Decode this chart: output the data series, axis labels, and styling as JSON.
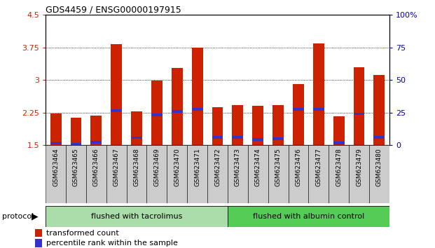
{
  "title": "GDS4459 / ENSG00000197915",
  "categories": [
    "GSM623464",
    "GSM623465",
    "GSM623466",
    "GSM623467",
    "GSM623468",
    "GSM623469",
    "GSM623470",
    "GSM623471",
    "GSM623472",
    "GSM623473",
    "GSM623474",
    "GSM623475",
    "GSM623476",
    "GSM623477",
    "GSM623478",
    "GSM623479",
    "GSM623480"
  ],
  "bar_values": [
    2.22,
    2.13,
    2.18,
    3.82,
    2.28,
    2.98,
    3.28,
    3.75,
    2.38,
    2.42,
    2.4,
    2.42,
    2.9,
    3.85,
    2.16,
    3.3,
    3.12
  ],
  "blue_values": [
    1.54,
    1.52,
    1.57,
    2.29,
    1.67,
    2.2,
    2.28,
    2.33,
    1.68,
    1.68,
    1.63,
    1.65,
    2.32,
    2.33,
    1.55,
    2.22,
    1.68
  ],
  "bar_color": "#cc2200",
  "blue_color": "#3333cc",
  "ymin": 1.5,
  "ymax": 4.5,
  "yticks": [
    1.5,
    2.25,
    3.0,
    3.75,
    4.5
  ],
  "ytick_labels": [
    "1.5",
    "2.25",
    "3",
    "3.75",
    "4.5"
  ],
  "right_yticks": [
    0,
    25,
    50,
    75,
    100
  ],
  "right_ytick_labels": [
    "0",
    "25",
    "50",
    "75",
    "100%"
  ],
  "grid_values": [
    2.25,
    3.0,
    3.75
  ],
  "protocol_groups": [
    {
      "label": "flushed with tacrolimus",
      "start": 0,
      "end": 9,
      "color": "#aaddaa"
    },
    {
      "label": "flushed with albumin control",
      "start": 9,
      "end": 17,
      "color": "#55cc55"
    }
  ],
  "protocol_label": "protocol",
  "legend_items": [
    {
      "color": "#cc2200",
      "label": "transformed count"
    },
    {
      "color": "#3333cc",
      "label": "percentile rank within the sample"
    }
  ],
  "bar_width": 0.55,
  "col_bg": "#cccccc",
  "plot_bg": "#ffffff"
}
